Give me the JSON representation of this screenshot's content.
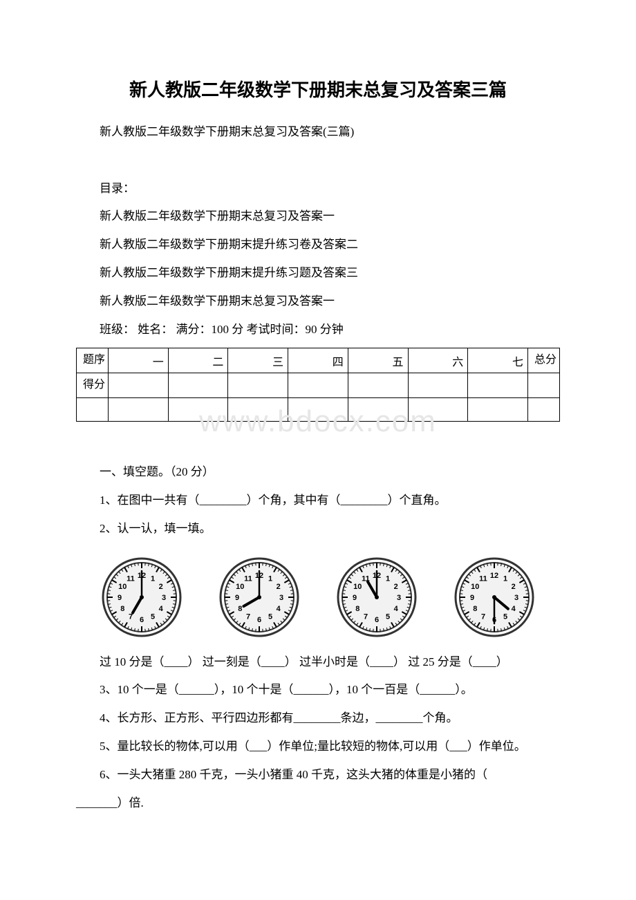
{
  "title": "新人教版二年级数学下册期末总复习及答案三篇",
  "subtitle": "新人教版二年级数学下册期末总复习及答案(三篇)",
  "toc_heading": "目录：",
  "toc": [
    "新人教版二年级数学下册期末总复习及答案一",
    "新人教版二年级数学下册期末提升练习卷及答案二",
    "新人教版二年级数学下册期末提升练习题及答案三",
    "新人教版二年级数学下册期末总复习及答案一"
  ],
  "exam_header": "班级：   姓名：   满分：100 分  考试时间：90 分钟",
  "score_table": {
    "row1": [
      "题序",
      "一",
      "二",
      "三",
      "四",
      "五",
      "六",
      "七",
      "总分"
    ],
    "row2_label": "得分"
  },
  "watermark": "www.bdocx.com",
  "section1": {
    "heading": "一、填空题。（20 分）",
    "q1": "1、在图中一共有（________）个角，其中有（________）个直角。",
    "q2": "2、认一认，填一填。",
    "clocks": [
      {
        "hour_angle": 210,
        "minute_angle": 0
      },
      {
        "hour_angle": 240,
        "minute_angle": 0
      },
      {
        "hour_angle": 330,
        "minute_angle": 0
      },
      {
        "hour_angle": 130,
        "minute_angle": 180
      }
    ],
    "clock_line": "过 10 分是（____）  过一刻是（____）  过半小时是（____）  过 25 分是（____）",
    "q3": "3、10 个一是（______），10 个十是（______），10 个一百是（______）。",
    "q4": "4、长方形、正方形、平行四边形都有________条边，________个角。",
    "q5": "5、量比较长的物体,可以用（___）作单位;量比较短的物体,可以用（___）作单位。",
    "q6a": "6、一头大猪重 280 千克，一头小猪重 40 千克，这头大猪的体重是小猪的（",
    "q6b": "_______）倍."
  },
  "clock_style": {
    "face_fill": "#f2f2f2",
    "rim_stroke": "#333333",
    "tick_color": "#000000",
    "number_color": "#000000",
    "hand_color": "#000000"
  }
}
